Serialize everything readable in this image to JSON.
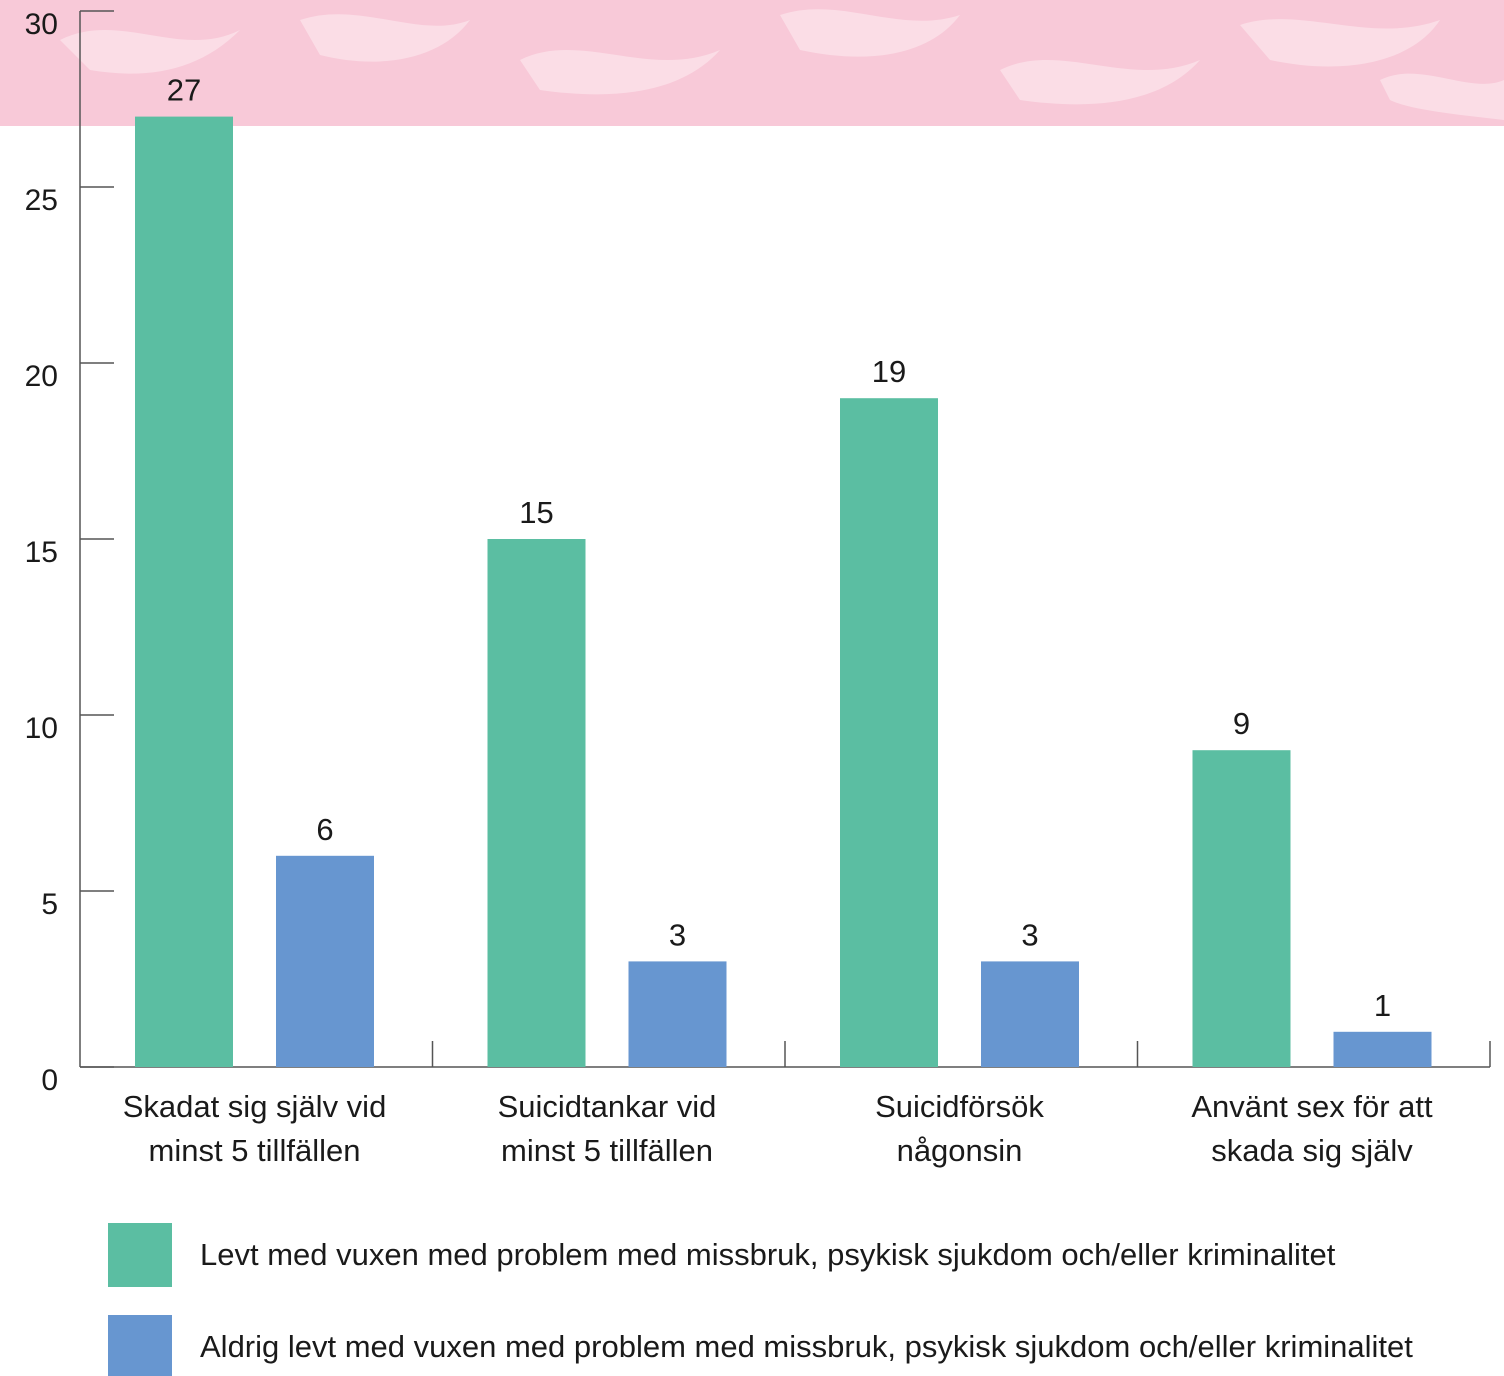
{
  "chart_data": {
    "type": "bar",
    "title": "",
    "xlabel": "",
    "ylabel": "",
    "ylim": [
      0,
      30
    ],
    "yticks": [
      0,
      5,
      10,
      15,
      20,
      25,
      30
    ],
    "grid": false,
    "legend_position": "bottom",
    "categories": [
      [
        "Skadat sig själv vid",
        "minst 5 tillfällen"
      ],
      [
        "Suicidtankar vid",
        "minst 5 tillfällen"
      ],
      [
        "Suicidförsök",
        "någonsin"
      ],
      [
        "Använt sex för att",
        "skada sig själv"
      ]
    ],
    "series": [
      {
        "name": "Levt med vuxen med problem med missbruk, psykisk sjukdom och/eller kriminalitet",
        "color": "#5bbea2",
        "values": [
          27,
          15,
          19,
          9
        ]
      },
      {
        "name": "Aldrig levt med vuxen med problem med missbruk, psykisk sjukdom och/eller kriminalitet",
        "color": "#6796d0",
        "values": [
          6,
          3,
          3,
          1
        ]
      }
    ],
    "background_band_color": "#f8c9d8"
  }
}
